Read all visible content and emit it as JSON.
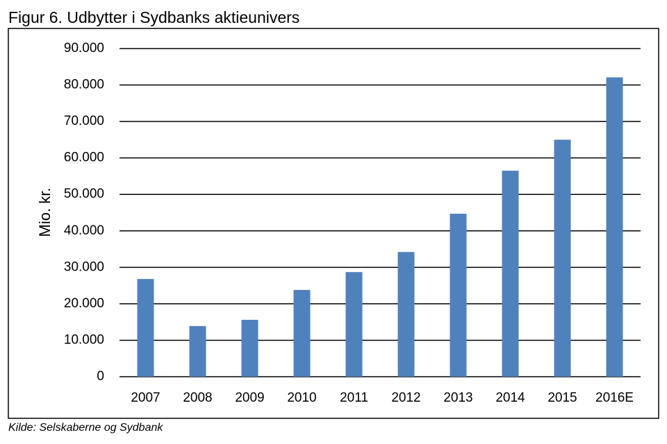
{
  "chart_data": {
    "type": "bar",
    "title": "Figur 6. Udbytter i Sydbanks aktieunivers",
    "y_label": "Mio. kr.",
    "source": "Kilde: Selskaberne og Sydbank",
    "categories": [
      "2007",
      "2008",
      "2009",
      "2010",
      "2011",
      "2012",
      "2013",
      "2014",
      "2015",
      "2016E"
    ],
    "values": [
      26800,
      13900,
      15600,
      23800,
      28700,
      34200,
      44700,
      56500,
      65000,
      82100
    ],
    "color": "#4f81bd",
    "ylim": [
      0,
      90000
    ],
    "yticks": [
      0,
      {
        "value": 10000,
        "label": "10.000"
      },
      {
        "value": 20000,
        "label": "20.000"
      },
      {
        "value": 30000,
        "label": "30.000"
      },
      {
        "value": 40000,
        "label": "40.000"
      },
      {
        "value": 50000,
        "label": "50.000"
      },
      {
        "value": 60000,
        "label": "60.000"
      },
      {
        "value": 70000,
        "label": "70.000"
      },
      {
        "value": 80000,
        "label": "80.000"
      },
      {
        "value": 90000,
        "label": "90.000"
      }
    ],
    "grid": true
  }
}
